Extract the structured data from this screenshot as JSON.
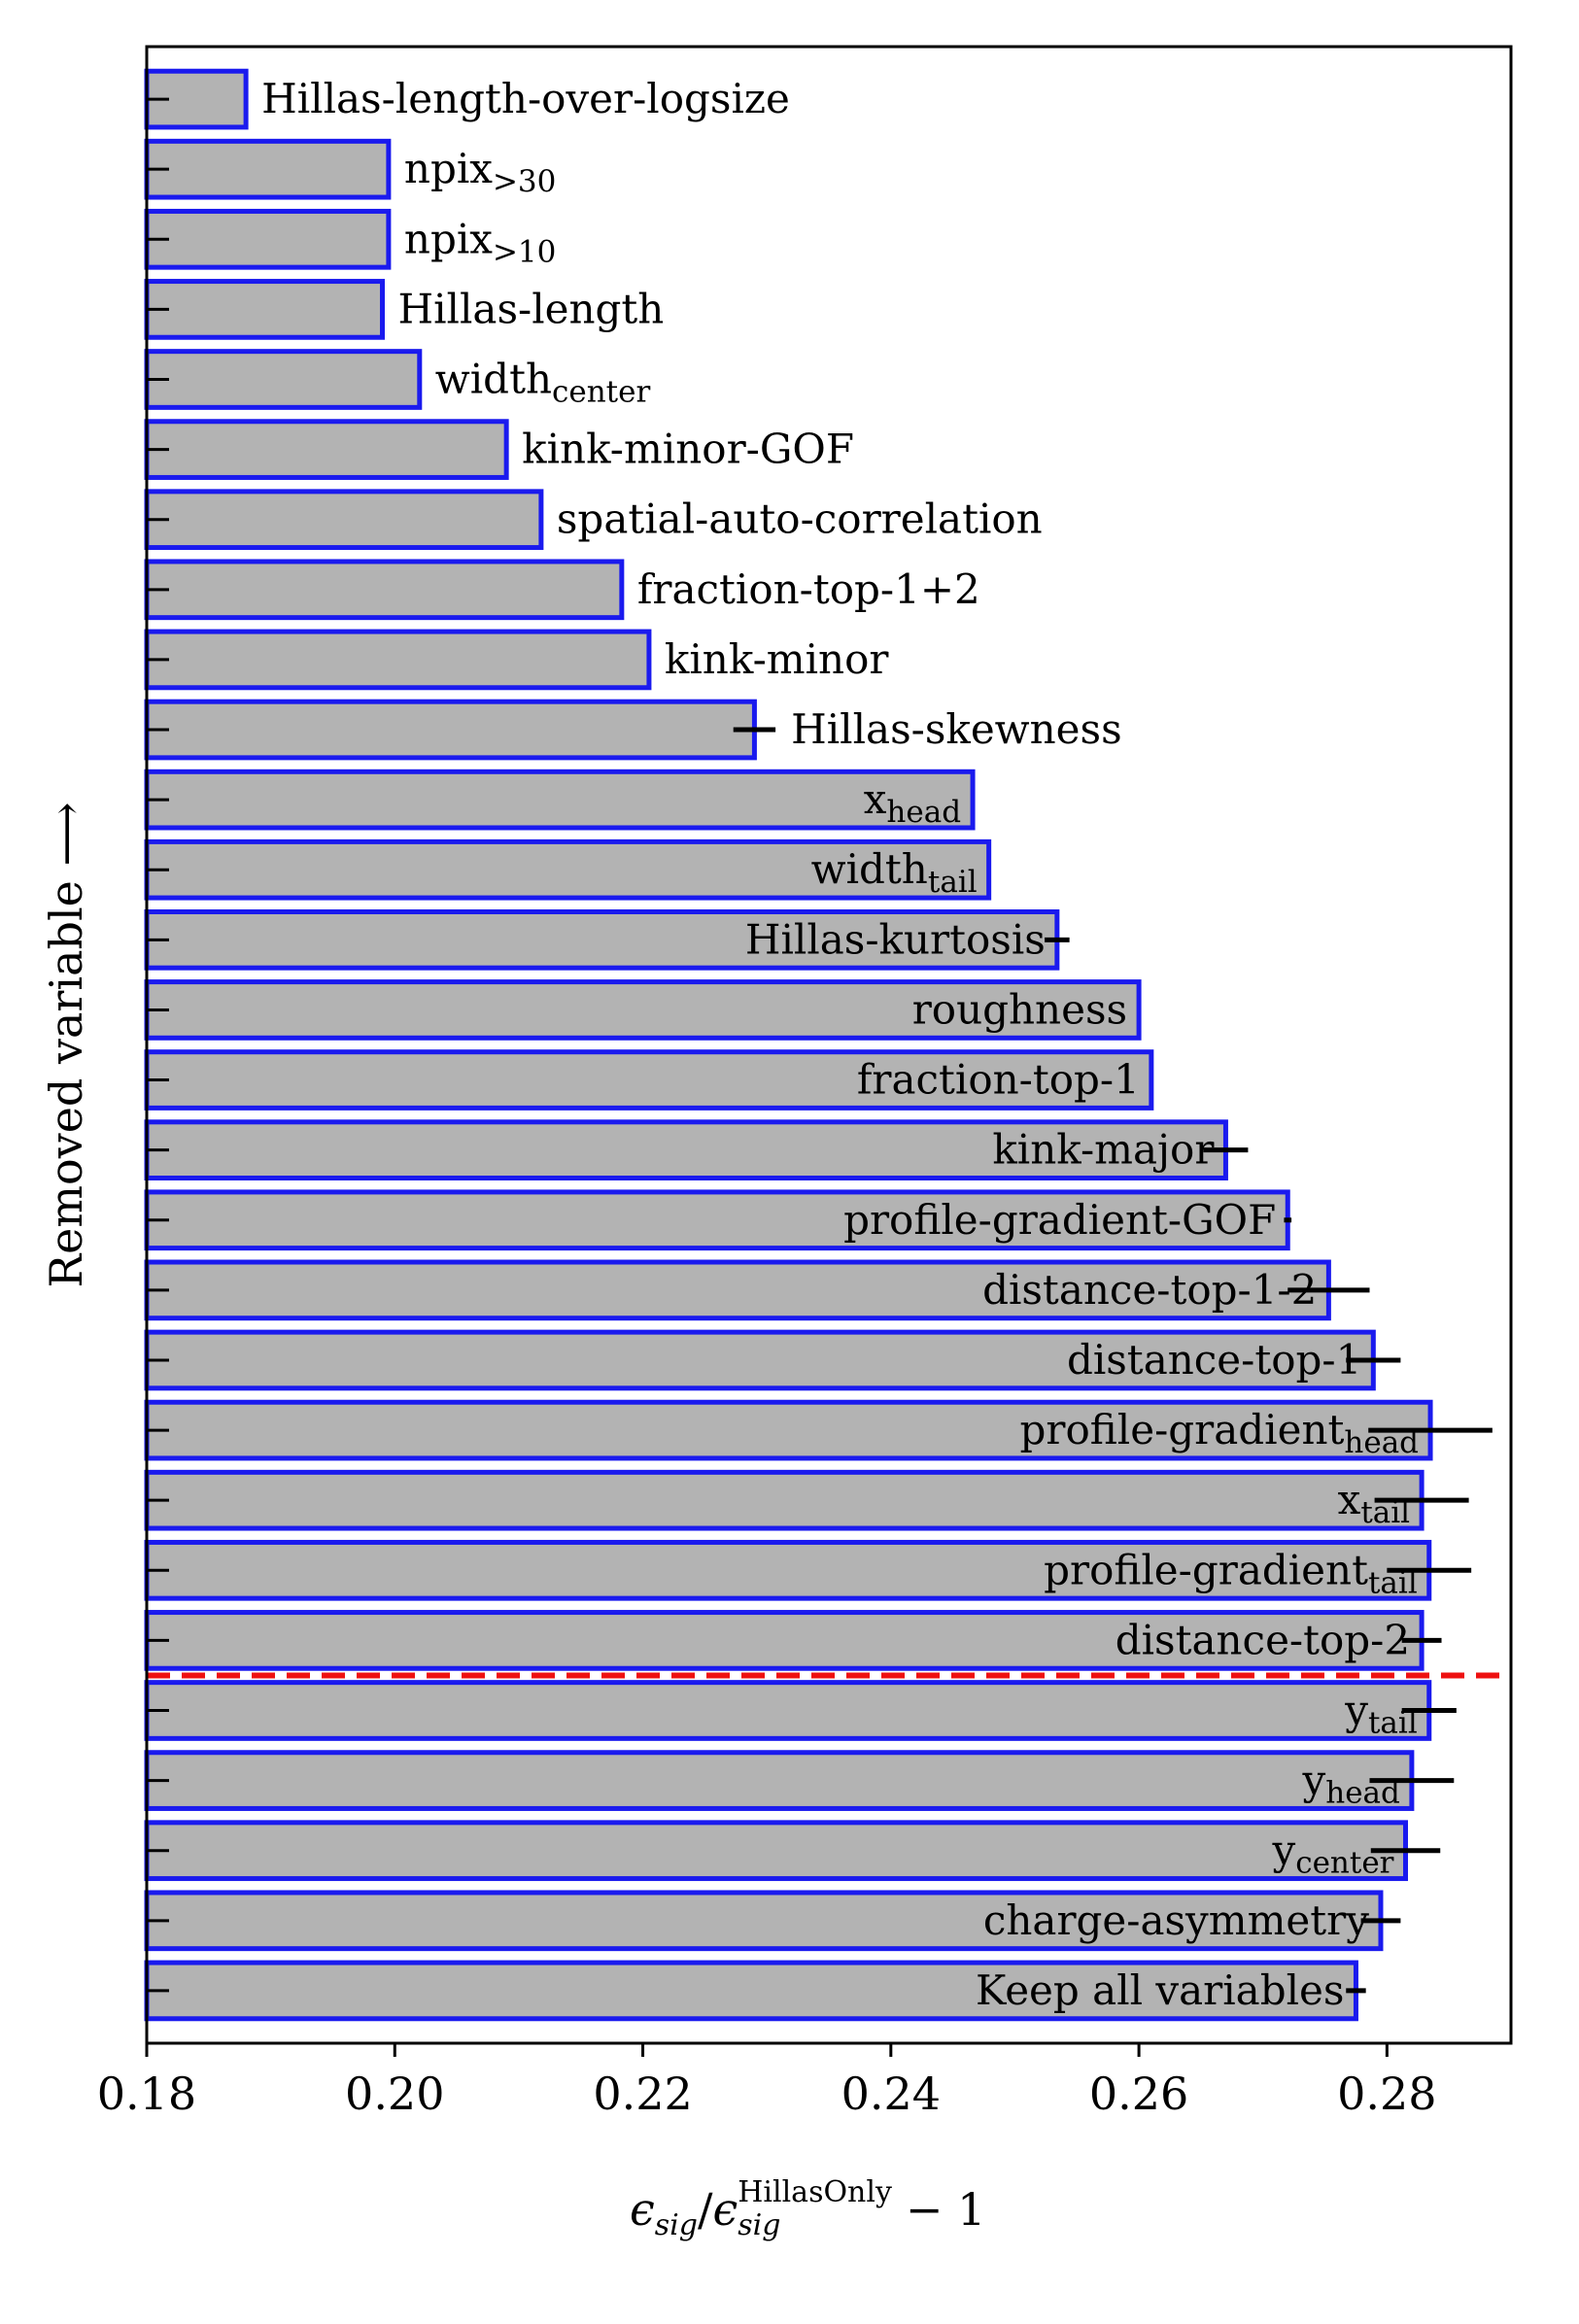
{
  "chart_data": {
    "type": "bar",
    "orientation": "horizontal",
    "ylabel": "Removed variable ⟶",
    "xlabel_parts": {
      "epsilon": "ϵ",
      "num_sub": "sig",
      "slash": "/",
      "den_sub": "sig",
      "den_sup": "HillasOnly",
      "tail": "− 1"
    },
    "xlim": [
      0.18,
      0.29
    ],
    "xticks": [
      {
        "value": 0.18,
        "label": "0.18"
      },
      {
        "value": 0.2,
        "label": "0.20"
      },
      {
        "value": 0.22,
        "label": "0.22"
      },
      {
        "value": 0.24,
        "label": "0.24"
      },
      {
        "value": 0.26,
        "label": "0.26"
      },
      {
        "value": 0.28,
        "label": "0.28"
      }
    ],
    "grid": false,
    "reference_line": {
      "after_index": 22,
      "style": "dashed",
      "color": "#ee1111"
    },
    "colors": {
      "bar_fill": "#b3b3b3",
      "bar_edge": "#1a1aee",
      "error": "#000000"
    },
    "bars": [
      {
        "label": "Hillas-length-over-logsize",
        "sub": "",
        "value": 0.188,
        "err": 0,
        "label_pos": "outside"
      },
      {
        "label": "npix",
        "sub": ">30",
        "value": 0.1995,
        "err": 0,
        "label_pos": "outside"
      },
      {
        "label": "npix",
        "sub": ">10",
        "value": 0.1995,
        "err": 0,
        "label_pos": "outside"
      },
      {
        "label": "Hillas-length",
        "sub": "",
        "value": 0.199,
        "err": 0,
        "label_pos": "outside"
      },
      {
        "label": "width",
        "sub": "center",
        "value": 0.202,
        "err": 0,
        "label_pos": "outside"
      },
      {
        "label": "kink-minor-GOF",
        "sub": "",
        "value": 0.209,
        "err": 0,
        "label_pos": "outside"
      },
      {
        "label": "spatial-auto-correlation",
        "sub": "",
        "value": 0.2118,
        "err": 0,
        "label_pos": "outside"
      },
      {
        "label": "fraction-top-1+2",
        "sub": "",
        "value": 0.2183,
        "err": 0,
        "label_pos": "outside"
      },
      {
        "label": "kink-minor",
        "sub": "",
        "value": 0.2205,
        "err": 0,
        "label_pos": "outside"
      },
      {
        "label": "Hillas-skewness",
        "sub": "",
        "value": 0.229,
        "err": 0.0017,
        "label_pos": "outside"
      },
      {
        "label": "x",
        "sub": "head",
        "value": 0.2466,
        "err": 0,
        "label_pos": "inside"
      },
      {
        "label": "width",
        "sub": "tail",
        "value": 0.2479,
        "err": 0,
        "label_pos": "inside"
      },
      {
        "label": "Hillas-kurtosis",
        "sub": "",
        "value": 0.2534,
        "err": 0.001,
        "label_pos": "inside"
      },
      {
        "label": "roughness",
        "sub": "",
        "value": 0.26,
        "err": 0,
        "label_pos": "inside"
      },
      {
        "label": "fraction-top-1",
        "sub": "",
        "value": 0.261,
        "err": 0,
        "label_pos": "inside"
      },
      {
        "label": "kink-major",
        "sub": "",
        "value": 0.267,
        "err": 0.0018,
        "label_pos": "inside"
      },
      {
        "label": "profile-gradient-GOF",
        "sub": "",
        "value": 0.272,
        "err": 0.0003,
        "label_pos": "inside"
      },
      {
        "label": "distance-top-1-2",
        "sub": "",
        "value": 0.2753,
        "err": 0.0033,
        "label_pos": "inside"
      },
      {
        "label": "distance-top-1",
        "sub": "",
        "value": 0.2789,
        "err": 0.0022,
        "label_pos": "inside"
      },
      {
        "label": "profile-gradient",
        "sub": "head",
        "value": 0.2835,
        "err": 0.005,
        "label_pos": "inside"
      },
      {
        "label": "x",
        "sub": "tail",
        "value": 0.2828,
        "err": 0.0038,
        "label_pos": "inside"
      },
      {
        "label": "profile-gradient",
        "sub": "tail",
        "value": 0.2834,
        "err": 0.0034,
        "label_pos": "inside"
      },
      {
        "label": "distance-top-2",
        "sub": "",
        "value": 0.2828,
        "err": 0.0016,
        "label_pos": "inside"
      },
      {
        "label": "y",
        "sub": "tail",
        "value": 0.2834,
        "err": 0.0022,
        "label_pos": "inside"
      },
      {
        "label": "y",
        "sub": "head",
        "value": 0.282,
        "err": 0.0034,
        "label_pos": "inside"
      },
      {
        "label": "y",
        "sub": "center",
        "value": 0.2815,
        "err": 0.0028,
        "label_pos": "inside"
      },
      {
        "label": "charge-asymmetry",
        "sub": "",
        "value": 0.2795,
        "err": 0.0016,
        "label_pos": "inside"
      },
      {
        "label": "Keep all variables",
        "sub": "",
        "value": 0.2775,
        "err": 0.0008,
        "label_pos": "inside"
      }
    ]
  }
}
